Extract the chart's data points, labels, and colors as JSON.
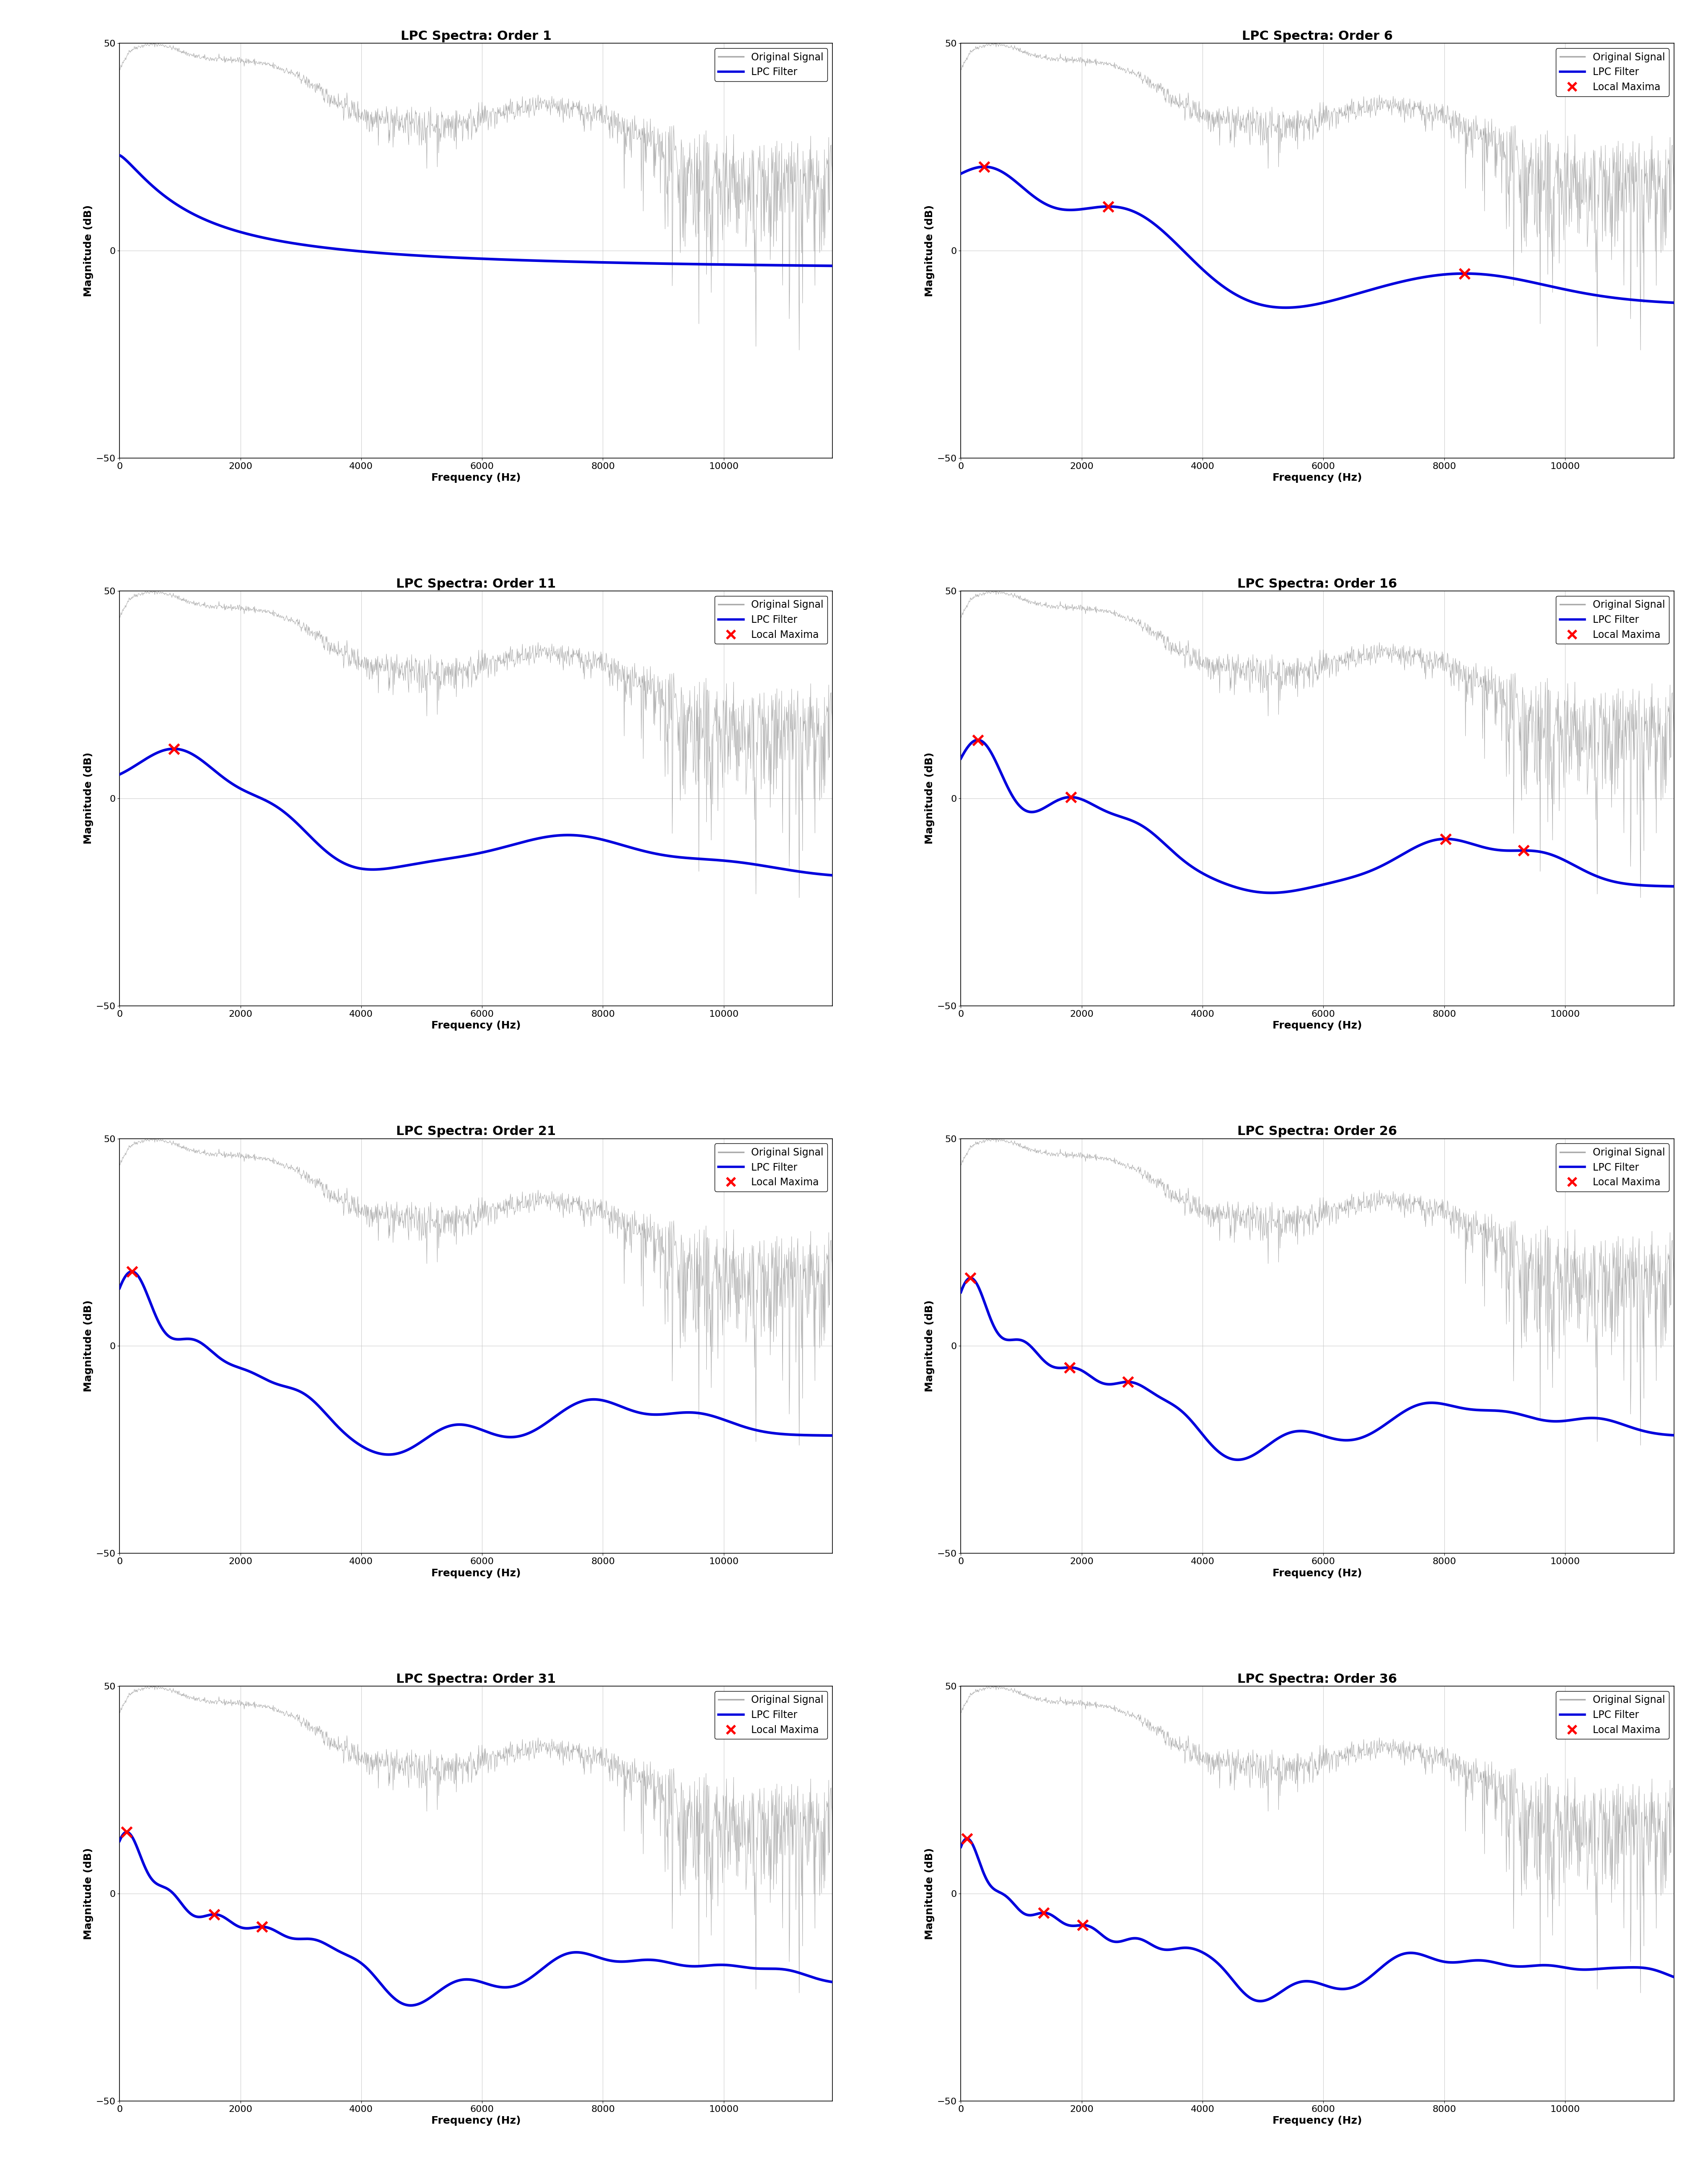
{
  "titles": [
    "LPC Spectra: Order 1",
    "LPC Spectra: Order 6",
    "LPC Spectra: Order 11",
    "LPC Spectra: Order 16",
    "LPC Spectra: Order 21",
    "LPC Spectra: Order 26",
    "LPC Spectra: Order 31",
    "LPC Spectra: Order 36"
  ],
  "orders": [
    1,
    6,
    11,
    16,
    21,
    26,
    31,
    36
  ],
  "xlabel": "Frequency (Hz)",
  "ylabel": "Magnitude (dB)",
  "xlim": [
    0,
    11800
  ],
  "ylim": [
    -50,
    50
  ],
  "xticks": [
    0,
    2000,
    4000,
    6000,
    8000,
    10000
  ],
  "yticks": [
    -50,
    0,
    50
  ],
  "signal_color": "#aaaaaa",
  "lpc_color": "#0000dd",
  "maxima_color": "#ff0000",
  "background_color": "#ffffff",
  "grid_color": "#cccccc",
  "title_fontsize": 22,
  "label_fontsize": 18,
  "tick_fontsize": 16,
  "legend_fontsize": 17,
  "lpc_linewidth": 4.5,
  "signal_linewidth": 0.7,
  "marker_size": 300,
  "marker_linewidth": 4
}
